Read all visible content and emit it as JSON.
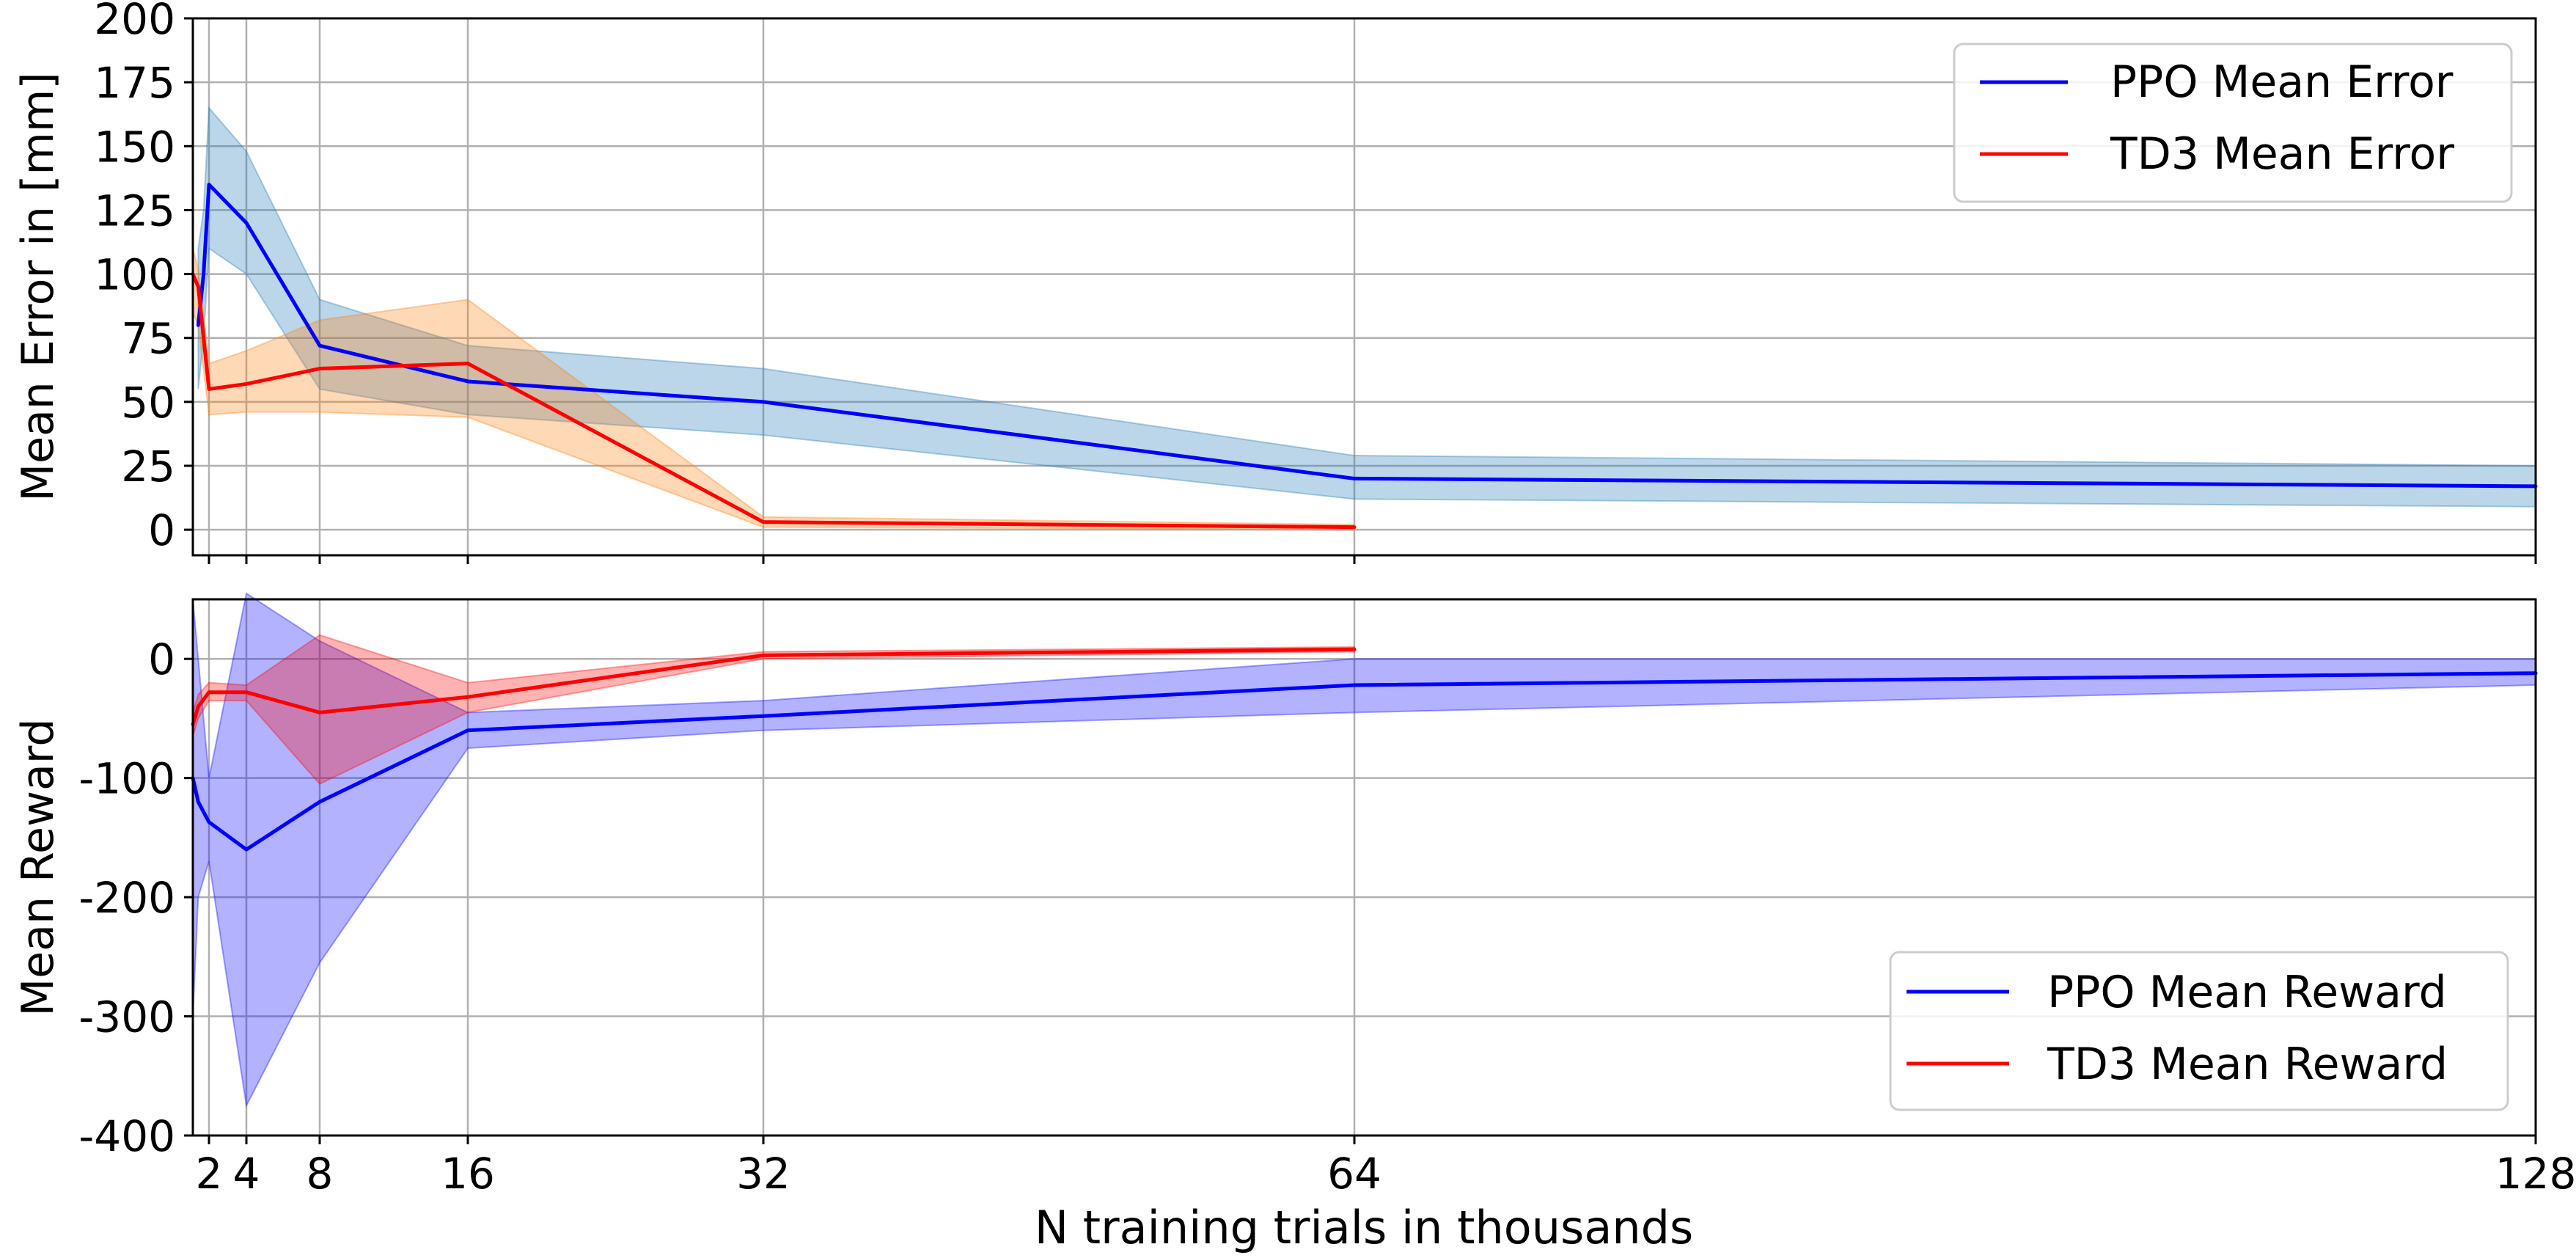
{
  "chart_data": [
    {
      "type": "line",
      "title": "",
      "xlabel": "",
      "ylabel": "Mean Error in [mm]",
      "xlim": [
        0.5,
        128
      ],
      "ylim": [
        -10,
        200
      ],
      "x_ticks": [
        2,
        4,
        8,
        16,
        32,
        64,
        128
      ],
      "x_tick_labels": [
        "",
        "",
        "",
        "",
        "",
        "",
        ""
      ],
      "y_ticks": [
        0,
        25,
        50,
        75,
        100,
        125,
        150,
        175,
        200
      ],
      "y_tick_labels": [
        "0",
        "25",
        "50",
        "75",
        "100",
        "125",
        "150",
        "175",
        "200"
      ],
      "grid": true,
      "legend": {
        "position": "top-right",
        "entries": [
          "PPO Mean Error",
          "TD3 Mean Error"
        ]
      },
      "series": [
        {
          "name": "PPO Mean Error",
          "color": "#0000ff",
          "band_color": "#1f77b4",
          "x": [
            1,
            1.5,
            2,
            4,
            8,
            16,
            32,
            64,
            128
          ],
          "y": [
            80,
            100,
            135,
            120,
            72,
            58,
            50,
            20,
            17
          ],
          "lower": [
            55,
            75,
            110,
            100,
            55,
            45,
            37,
            12,
            9
          ],
          "upper": [
            110,
            125,
            165,
            148,
            90,
            72,
            63,
            29,
            25
          ]
        },
        {
          "name": "TD3 Mean Error",
          "color": "#ff0000",
          "band_color": "#ff7f0e",
          "x": [
            0.5,
            1,
            2,
            4,
            8,
            16,
            32,
            64
          ],
          "y": [
            100,
            95,
            55,
            57,
            63,
            65,
            3,
            1
          ],
          "lower": [
            85,
            80,
            45,
            46,
            46,
            44,
            1,
            0
          ],
          "upper": [
            110,
            102,
            65,
            70,
            82,
            90,
            5,
            2
          ]
        }
      ]
    },
    {
      "type": "line",
      "title": "",
      "xlabel": "N training trials in thousands",
      "ylabel": "Mean Reward",
      "xlim": [
        0.5,
        128
      ],
      "ylim": [
        -400,
        50
      ],
      "x_ticks": [
        2,
        4,
        8,
        16,
        32,
        64,
        128
      ],
      "x_tick_labels": [
        "2",
        "4",
        "8",
        "16",
        "32",
        "64",
        "128"
      ],
      "y_ticks": [
        0,
        -100,
        -200,
        -300,
        -400
      ],
      "y_tick_labels": [
        "0",
        "-100",
        "-200",
        "-300",
        "-400"
      ],
      "grid": true,
      "legend": {
        "position": "lower-right",
        "entries": [
          "PPO Mean Reward",
          "TD3 Mean Reward"
        ]
      },
      "series": [
        {
          "name": "PPO Mean Reward",
          "color": "#0000ff",
          "band_color": "#0000ff",
          "x": [
            0.5,
            1,
            2,
            4,
            8,
            16,
            32,
            64,
            128
          ],
          "y": [
            -100,
            -120,
            -137,
            -160,
            -120,
            -60,
            -48,
            -22,
            -12
          ],
          "lower": [
            -300,
            -200,
            -170,
            -375,
            -255,
            -75,
            -60,
            -45,
            -22
          ],
          "upper": [
            50,
            0,
            -100,
            55,
            15,
            -45,
            -35,
            0,
            0
          ]
        },
        {
          "name": "TD3 Mean Reward",
          "color": "#ff0000",
          "band_color": "#ff0000",
          "x": [
            0.5,
            1,
            2,
            4,
            8,
            16,
            32,
            64
          ],
          "y": [
            -55,
            -40,
            -28,
            -28,
            -45,
            -32,
            3,
            8
          ],
          "lower": [
            -65,
            -50,
            -35,
            -35,
            -105,
            -45,
            0,
            6
          ],
          "upper": [
            -45,
            -30,
            -20,
            -22,
            20,
            -20,
            6,
            10
          ]
        }
      ]
    }
  ]
}
